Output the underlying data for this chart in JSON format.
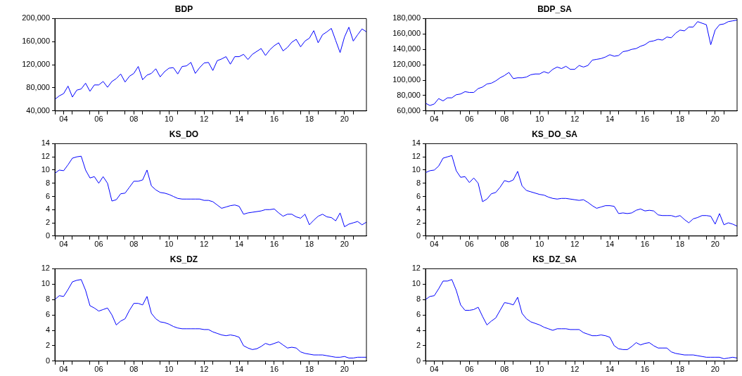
{
  "chart_data": [
    {
      "type": "line",
      "title": "BDP",
      "color": "#0000ff",
      "marker": "none",
      "x": [
        "2004-01",
        "2004-04",
        "2004-07",
        "2004-10",
        "2005-01",
        "2005-04",
        "2005-07",
        "2005-10",
        "2006-01",
        "2006-04",
        "2006-07",
        "2006-10",
        "2007-01",
        "2007-04",
        "2007-07",
        "2007-10",
        "2008-01",
        "2008-04",
        "2008-07",
        "2008-10",
        "2009-01",
        "2009-04",
        "2009-07",
        "2009-10",
        "2010-01",
        "2010-04",
        "2010-07",
        "2010-10",
        "2011-01",
        "2011-04",
        "2011-07",
        "2011-10",
        "2012-01",
        "2012-04",
        "2012-07",
        "2012-10",
        "2013-01",
        "2013-04",
        "2013-07",
        "2013-10",
        "2014-01",
        "2014-04",
        "2014-07",
        "2014-10",
        "2015-01",
        "2015-04",
        "2015-07",
        "2015-10",
        "2016-01",
        "2016-04",
        "2016-07",
        "2016-10",
        "2017-01",
        "2017-04",
        "2017-07",
        "2017-10",
        "2018-01",
        "2018-04",
        "2018-07",
        "2018-10",
        "2019-01",
        "2019-04",
        "2019-07",
        "2019-10",
        "2020-01",
        "2020-04",
        "2020-07",
        "2020-10",
        "2021-01",
        "2021-04",
        "2021-07",
        "2021-10"
      ],
      "values": [
        60000,
        66000,
        70000,
        83000,
        64000,
        76000,
        78000,
        88000,
        74000,
        85000,
        85000,
        91000,
        81000,
        91000,
        96000,
        104000,
        90000,
        100000,
        105000,
        117000,
        94000,
        102000,
        105000,
        113000,
        99000,
        108000,
        114000,
        115000,
        104000,
        117000,
        118000,
        124000,
        105000,
        115000,
        123000,
        124000,
        110000,
        127000,
        130000,
        134000,
        121000,
        134000,
        134000,
        138000,
        129000,
        138000,
        143000,
        148000,
        136000,
        146000,
        153000,
        158000,
        144000,
        150000,
        159000,
        164000,
        151000,
        161000,
        166000,
        179000,
        158000,
        172000,
        177000,
        183000,
        162000,
        141000,
        168000,
        185000,
        161000,
        172000,
        182000,
        177000
      ],
      "xlim": [
        "2004-01",
        "2021-10"
      ],
      "xticks": [
        {
          "value": "2004",
          "label": null
        },
        {
          "value": "2004-07",
          "label": "04"
        },
        {
          "value": "2005",
          "label": null
        },
        {
          "value": "2006",
          "label": null
        },
        {
          "value": "2006-07",
          "label": "06"
        },
        {
          "value": "2007",
          "label": null
        },
        {
          "value": "2008",
          "label": null
        },
        {
          "value": "2008-07",
          "label": "08"
        },
        {
          "value": "2009",
          "label": null
        },
        {
          "value": "2010",
          "label": null
        },
        {
          "value": "2010-07",
          "label": "10"
        },
        {
          "value": "2011",
          "label": null
        },
        {
          "value": "2012",
          "label": null
        },
        {
          "value": "2012-07",
          "label": "12"
        },
        {
          "value": "2013",
          "label": null
        },
        {
          "value": "2014",
          "label": null
        },
        {
          "value": "2014-07",
          "label": "14"
        },
        {
          "value": "2015",
          "label": null
        },
        {
          "value": "2016",
          "label": null
        },
        {
          "value": "2016-07",
          "label": "16"
        },
        {
          "value": "2017",
          "label": null
        },
        {
          "value": "2018",
          "label": null
        },
        {
          "value": "2018-07",
          "label": "18"
        },
        {
          "value": "2019",
          "label": null
        },
        {
          "value": "2020",
          "label": null
        },
        {
          "value": "2020-07",
          "label": "20"
        },
        {
          "value": "2021",
          "label": null
        }
      ],
      "ylim": [
        40000,
        200000
      ],
      "yticks": [
        {
          "value": 40000,
          "label": "40,000"
        },
        {
          "value": 80000,
          "label": "80,000"
        },
        {
          "value": 120000,
          "label": "120,000"
        },
        {
          "value": 160000,
          "label": "160,000"
        },
        {
          "value": 200000,
          "label": "200,000"
        }
      ]
    },
    {
      "type": "line",
      "title": "BDP_SA",
      "color": "#0000ff",
      "marker": "none",
      "x": [
        "2004-01",
        "2004-04",
        "2004-07",
        "2004-10",
        "2005-01",
        "2005-04",
        "2005-07",
        "2005-10",
        "2006-01",
        "2006-04",
        "2006-07",
        "2006-10",
        "2007-01",
        "2007-04",
        "2007-07",
        "2007-10",
        "2008-01",
        "2008-04",
        "2008-07",
        "2008-10",
        "2009-01",
        "2009-04",
        "2009-07",
        "2009-10",
        "2010-01",
        "2010-04",
        "2010-07",
        "2010-10",
        "2011-01",
        "2011-04",
        "2011-07",
        "2011-10",
        "2012-01",
        "2012-04",
        "2012-07",
        "2012-10",
        "2013-01",
        "2013-04",
        "2013-07",
        "2013-10",
        "2014-01",
        "2014-04",
        "2014-07",
        "2014-10",
        "2015-01",
        "2015-04",
        "2015-07",
        "2015-10",
        "2016-01",
        "2016-04",
        "2016-07",
        "2016-10",
        "2017-01",
        "2017-04",
        "2017-07",
        "2017-10",
        "2018-01",
        "2018-04",
        "2018-07",
        "2018-10",
        "2019-01",
        "2019-04",
        "2019-07",
        "2019-10",
        "2020-01",
        "2020-04",
        "2020-07",
        "2020-10",
        "2021-01",
        "2021-04",
        "2021-07",
        "2021-10"
      ],
      "values": [
        70000,
        67000,
        69000,
        76000,
        73000,
        77000,
        77000,
        81000,
        82000,
        85000,
        84000,
        84000,
        89000,
        91000,
        95000,
        96000,
        99000,
        103000,
        106000,
        110000,
        102000,
        103000,
        103000,
        104000,
        107000,
        108000,
        108000,
        111000,
        109000,
        114000,
        117000,
        115000,
        118000,
        114000,
        114000,
        119000,
        117000,
        119000,
        126000,
        127000,
        128000,
        130000,
        133000,
        131000,
        132000,
        137000,
        138000,
        140000,
        141000,
        144000,
        146000,
        150000,
        151000,
        153000,
        152000,
        156000,
        155000,
        161000,
        165000,
        164000,
        169000,
        169000,
        176000,
        174000,
        172000,
        146000,
        165000,
        172000,
        173000,
        176000,
        177000,
        178000
      ],
      "xlim": [
        "2004-01",
        "2021-10"
      ],
      "xticks": [
        {
          "value": "2004",
          "label": null
        },
        {
          "value": "2004-07",
          "label": "04"
        },
        {
          "value": "2005",
          "label": null
        },
        {
          "value": "2006",
          "label": null
        },
        {
          "value": "2006-07",
          "label": "06"
        },
        {
          "value": "2007",
          "label": null
        },
        {
          "value": "2008",
          "label": null
        },
        {
          "value": "2008-07",
          "label": "08"
        },
        {
          "value": "2009",
          "label": null
        },
        {
          "value": "2010",
          "label": null
        },
        {
          "value": "2010-07",
          "label": "10"
        },
        {
          "value": "2011",
          "label": null
        },
        {
          "value": "2012",
          "label": null
        },
        {
          "value": "2012-07",
          "label": "12"
        },
        {
          "value": "2013",
          "label": null
        },
        {
          "value": "2014",
          "label": null
        },
        {
          "value": "2014-07",
          "label": "14"
        },
        {
          "value": "2015",
          "label": null
        },
        {
          "value": "2016",
          "label": null
        },
        {
          "value": "2016-07",
          "label": "16"
        },
        {
          "value": "2017",
          "label": null
        },
        {
          "value": "2018",
          "label": null
        },
        {
          "value": "2018-07",
          "label": "18"
        },
        {
          "value": "2019",
          "label": null
        },
        {
          "value": "2020",
          "label": null
        },
        {
          "value": "2020-07",
          "label": "20"
        },
        {
          "value": "2021",
          "label": null
        }
      ],
      "ylim": [
        60000,
        180000
      ],
      "yticks": [
        {
          "value": 60000,
          "label": "60,000"
        },
        {
          "value": 80000,
          "label": "80,000"
        },
        {
          "value": 100000,
          "label": "100,000"
        },
        {
          "value": 120000,
          "label": "120,000"
        },
        {
          "value": 140000,
          "label": "140,000"
        },
        {
          "value": 160000,
          "label": "160,000"
        },
        {
          "value": 180000,
          "label": "180,000"
        }
      ]
    },
    {
      "type": "line",
      "title": "KS_DO",
      "color": "#0000ff",
      "marker": "none",
      "x": [
        "2004-01",
        "2004-04",
        "2004-07",
        "2004-10",
        "2005-01",
        "2005-04",
        "2005-07",
        "2005-10",
        "2006-01",
        "2006-04",
        "2006-07",
        "2006-10",
        "2007-01",
        "2007-04",
        "2007-07",
        "2007-10",
        "2008-01",
        "2008-04",
        "2008-07",
        "2008-10",
        "2009-01",
        "2009-04",
        "2009-07",
        "2009-10",
        "2010-01",
        "2010-04",
        "2010-07",
        "2010-10",
        "2011-01",
        "2011-04",
        "2011-07",
        "2011-10",
        "2012-01",
        "2012-04",
        "2012-07",
        "2012-10",
        "2013-01",
        "2013-04",
        "2013-07",
        "2013-10",
        "2014-01",
        "2014-04",
        "2014-07",
        "2014-10",
        "2015-01",
        "2015-04",
        "2015-07",
        "2015-10",
        "2016-01",
        "2016-04",
        "2016-07",
        "2016-10",
        "2017-01",
        "2017-04",
        "2017-07",
        "2017-10",
        "2018-01",
        "2018-04",
        "2018-07",
        "2018-10",
        "2019-01",
        "2019-04",
        "2019-07",
        "2019-10",
        "2020-01",
        "2020-04",
        "2020-07",
        "2020-10",
        "2021-01",
        "2021-04",
        "2021-07",
        "2021-10"
      ],
      "values": [
        9.5,
        10.0,
        9.9,
        10.8,
        11.8,
        12.0,
        12.1,
        10.0,
        8.8,
        9.0,
        8.0,
        9.0,
        8.0,
        5.3,
        5.5,
        6.4,
        6.5,
        7.4,
        8.3,
        8.3,
        8.5,
        10.0,
        7.6,
        7.0,
        6.6,
        6.5,
        6.3,
        6.0,
        5.7,
        5.6,
        5.6,
        5.6,
        5.6,
        5.6,
        5.4,
        5.4,
        5.2,
        4.7,
        4.2,
        4.4,
        4.6,
        4.7,
        4.5,
        3.3,
        3.5,
        3.6,
        3.7,
        3.8,
        4.0,
        4.0,
        4.1,
        3.5,
        3.0,
        3.3,
        3.3,
        2.9,
        2.7,
        3.3,
        1.7,
        2.4,
        3.0,
        3.3,
        2.9,
        2.8,
        2.3,
        3.5,
        1.4,
        1.8,
        2.0,
        2.2,
        1.7,
        2.1
      ],
      "xlim": [
        "2004-01",
        "2021-10"
      ],
      "xticks": [
        {
          "value": "2004",
          "label": null
        },
        {
          "value": "2004-07",
          "label": "04"
        },
        {
          "value": "2005",
          "label": null
        },
        {
          "value": "2006",
          "label": null
        },
        {
          "value": "2006-07",
          "label": "06"
        },
        {
          "value": "2007",
          "label": null
        },
        {
          "value": "2008",
          "label": null
        },
        {
          "value": "2008-07",
          "label": "08"
        },
        {
          "value": "2009",
          "label": null
        },
        {
          "value": "2010",
          "label": null
        },
        {
          "value": "2010-07",
          "label": "10"
        },
        {
          "value": "2011",
          "label": null
        },
        {
          "value": "2012",
          "label": null
        },
        {
          "value": "2012-07",
          "label": "12"
        },
        {
          "value": "2013",
          "label": null
        },
        {
          "value": "2014",
          "label": null
        },
        {
          "value": "2014-07",
          "label": "14"
        },
        {
          "value": "2015",
          "label": null
        },
        {
          "value": "2016",
          "label": null
        },
        {
          "value": "2016-07",
          "label": "16"
        },
        {
          "value": "2017",
          "label": null
        },
        {
          "value": "2018",
          "label": null
        },
        {
          "value": "2018-07",
          "label": "18"
        },
        {
          "value": "2019",
          "label": null
        },
        {
          "value": "2020",
          "label": null
        },
        {
          "value": "2020-07",
          "label": "20"
        },
        {
          "value": "2021",
          "label": null
        }
      ],
      "ylim": [
        0,
        14
      ],
      "yticks": [
        0,
        2,
        4,
        6,
        8,
        10,
        12,
        14
      ]
    },
    {
      "type": "line",
      "title": "KS_DO_SA",
      "color": "#0000ff",
      "marker": "none",
      "x": [
        "2004-01",
        "2004-04",
        "2004-07",
        "2004-10",
        "2005-01",
        "2005-04",
        "2005-07",
        "2005-10",
        "2006-01",
        "2006-04",
        "2006-07",
        "2006-10",
        "2007-01",
        "2007-04",
        "2007-07",
        "2007-10",
        "2008-01",
        "2008-04",
        "2008-07",
        "2008-10",
        "2009-01",
        "2009-04",
        "2009-07",
        "2009-10",
        "2010-01",
        "2010-04",
        "2010-07",
        "2010-10",
        "2011-01",
        "2011-04",
        "2011-07",
        "2011-10",
        "2012-01",
        "2012-04",
        "2012-07",
        "2012-10",
        "2013-01",
        "2013-04",
        "2013-07",
        "2013-10",
        "2014-01",
        "2014-04",
        "2014-07",
        "2014-10",
        "2015-01",
        "2015-04",
        "2015-07",
        "2015-10",
        "2016-01",
        "2016-04",
        "2016-07",
        "2016-10",
        "2017-01",
        "2017-04",
        "2017-07",
        "2017-10",
        "2018-01",
        "2018-04",
        "2018-07",
        "2018-10",
        "2019-01",
        "2019-04",
        "2019-07",
        "2019-10",
        "2020-01",
        "2020-04",
        "2020-07",
        "2020-10",
        "2021-01",
        "2021-04",
        "2021-07",
        "2021-10"
      ],
      "values": [
        9.6,
        9.9,
        10.0,
        10.6,
        11.8,
        12.0,
        12.2,
        9.9,
        8.9,
        9.0,
        8.1,
        8.8,
        8.0,
        5.2,
        5.6,
        6.4,
        6.6,
        7.4,
        8.4,
        8.2,
        8.5,
        9.8,
        7.6,
        6.9,
        6.7,
        6.5,
        6.3,
        6.2,
        5.9,
        5.7,
        5.6,
        5.7,
        5.7,
        5.6,
        5.5,
        5.4,
        5.5,
        5.1,
        4.6,
        4.2,
        4.4,
        4.6,
        4.6,
        4.5,
        3.4,
        3.5,
        3.4,
        3.5,
        3.9,
        4.1,
        3.8,
        3.9,
        3.8,
        3.2,
        3.1,
        3.1,
        3.1,
        2.9,
        3.1,
        2.5,
        2.0,
        2.6,
        2.8,
        3.1,
        3.1,
        3.0,
        1.8,
        3.4,
        1.7,
        2.0,
        1.8,
        1.5
      ],
      "xlim": [
        "2004-01",
        "2021-10"
      ],
      "xticks": [
        {
          "value": "2004",
          "label": null
        },
        {
          "value": "2004-07",
          "label": "04"
        },
        {
          "value": "2005",
          "label": null
        },
        {
          "value": "2006",
          "label": null
        },
        {
          "value": "2006-07",
          "label": "06"
        },
        {
          "value": "2007",
          "label": null
        },
        {
          "value": "2008",
          "label": null
        },
        {
          "value": "2008-07",
          "label": "08"
        },
        {
          "value": "2009",
          "label": null
        },
        {
          "value": "2010",
          "label": null
        },
        {
          "value": "2010-07",
          "label": "10"
        },
        {
          "value": "2011",
          "label": null
        },
        {
          "value": "2012",
          "label": null
        },
        {
          "value": "2012-07",
          "label": "12"
        },
        {
          "value": "2013",
          "label": null
        },
        {
          "value": "2014",
          "label": null
        },
        {
          "value": "2014-07",
          "label": "14"
        },
        {
          "value": "2015",
          "label": null
        },
        {
          "value": "2016",
          "label": null
        },
        {
          "value": "2016-07",
          "label": "16"
        },
        {
          "value": "2017",
          "label": null
        },
        {
          "value": "2018",
          "label": null
        },
        {
          "value": "2018-07",
          "label": "18"
        },
        {
          "value": "2019",
          "label": null
        },
        {
          "value": "2020",
          "label": null
        },
        {
          "value": "2020-07",
          "label": "20"
        },
        {
          "value": "2021",
          "label": null
        }
      ],
      "ylim": [
        0,
        14
      ],
      "yticks": [
        0,
        2,
        4,
        6,
        8,
        10,
        12,
        14
      ]
    },
    {
      "type": "line",
      "title": "KS_DZ",
      "color": "#0000ff",
      "marker": "none",
      "x": [
        "2004-01",
        "2004-04",
        "2004-07",
        "2004-10",
        "2005-01",
        "2005-04",
        "2005-07",
        "2005-10",
        "2006-01",
        "2006-04",
        "2006-07",
        "2006-10",
        "2007-01",
        "2007-04",
        "2007-07",
        "2007-10",
        "2008-01",
        "2008-04",
        "2008-07",
        "2008-10",
        "2009-01",
        "2009-04",
        "2009-07",
        "2009-10",
        "2010-01",
        "2010-04",
        "2010-07",
        "2010-10",
        "2011-01",
        "2011-04",
        "2011-07",
        "2011-10",
        "2012-01",
        "2012-04",
        "2012-07",
        "2012-10",
        "2013-01",
        "2013-04",
        "2013-07",
        "2013-10",
        "2014-01",
        "2014-04",
        "2014-07",
        "2014-10",
        "2015-01",
        "2015-04",
        "2015-07",
        "2015-10",
        "2016-01",
        "2016-04",
        "2016-07",
        "2016-10",
        "2017-01",
        "2017-04",
        "2017-07",
        "2017-10",
        "2018-01",
        "2018-04",
        "2018-07",
        "2018-10",
        "2019-01",
        "2019-04",
        "2019-07",
        "2019-10",
        "2020-01",
        "2020-04",
        "2020-07",
        "2020-10",
        "2021-01",
        "2021-04",
        "2021-07",
        "2021-10"
      ],
      "values": [
        8.0,
        8.5,
        8.4,
        9.3,
        10.3,
        10.5,
        10.6,
        9.2,
        7.2,
        6.9,
        6.5,
        6.7,
        6.9,
        6.0,
        4.7,
        5.2,
        5.5,
        6.6,
        7.5,
        7.5,
        7.3,
        8.4,
        6.2,
        5.5,
        5.1,
        5.0,
        4.8,
        4.5,
        4.3,
        4.2,
        4.2,
        4.2,
        4.2,
        4.2,
        4.1,
        4.1,
        3.8,
        3.6,
        3.4,
        3.3,
        3.4,
        3.3,
        3.1,
        2.0,
        1.7,
        1.5,
        1.6,
        1.9,
        2.3,
        2.1,
        2.3,
        2.5,
        2.1,
        1.7,
        1.8,
        1.7,
        1.2,
        1.0,
        0.9,
        0.8,
        0.8,
        0.8,
        0.7,
        0.6,
        0.5,
        0.5,
        0.6,
        0.4,
        0.4,
        0.5,
        0.5,
        0.5
      ],
      "xlim": [
        "2004-01",
        "2021-10"
      ],
      "xticks": [
        {
          "value": "2004",
          "label": null
        },
        {
          "value": "2004-07",
          "label": "04"
        },
        {
          "value": "2005",
          "label": null
        },
        {
          "value": "2006",
          "label": null
        },
        {
          "value": "2006-07",
          "label": "06"
        },
        {
          "value": "2007",
          "label": null
        },
        {
          "value": "2008",
          "label": null
        },
        {
          "value": "2008-07",
          "label": "08"
        },
        {
          "value": "2009",
          "label": null
        },
        {
          "value": "2010",
          "label": null
        },
        {
          "value": "2010-07",
          "label": "10"
        },
        {
          "value": "2011",
          "label": null
        },
        {
          "value": "2012",
          "label": null
        },
        {
          "value": "2012-07",
          "label": "12"
        },
        {
          "value": "2013",
          "label": null
        },
        {
          "value": "2014",
          "label": null
        },
        {
          "value": "2014-07",
          "label": "14"
        },
        {
          "value": "2015",
          "label": null
        },
        {
          "value": "2016",
          "label": null
        },
        {
          "value": "2016-07",
          "label": "16"
        },
        {
          "value": "2017",
          "label": null
        },
        {
          "value": "2018",
          "label": null
        },
        {
          "value": "2018-07",
          "label": "18"
        },
        {
          "value": "2019",
          "label": null
        },
        {
          "value": "2020",
          "label": null
        },
        {
          "value": "2020-07",
          "label": "20"
        },
        {
          "value": "2021",
          "label": null
        }
      ],
      "ylim": [
        0,
        12
      ],
      "yticks": [
        0,
        2,
        4,
        6,
        8,
        10,
        12
      ]
    },
    {
      "type": "line",
      "title": "KS_DZ_SA",
      "color": "#0000ff",
      "marker": "none",
      "x": [
        "2004-01",
        "2004-04",
        "2004-07",
        "2004-10",
        "2005-01",
        "2005-04",
        "2005-07",
        "2005-10",
        "2006-01",
        "2006-04",
        "2006-07",
        "2006-10",
        "2007-01",
        "2007-04",
        "2007-07",
        "2007-10",
        "2008-01",
        "2008-04",
        "2008-07",
        "2008-10",
        "2009-01",
        "2009-04",
        "2009-07",
        "2009-10",
        "2010-01",
        "2010-04",
        "2010-07",
        "2010-10",
        "2011-01",
        "2011-04",
        "2011-07",
        "2011-10",
        "2012-01",
        "2012-04",
        "2012-07",
        "2012-10",
        "2013-01",
        "2013-04",
        "2013-07",
        "2013-10",
        "2014-01",
        "2014-04",
        "2014-07",
        "2014-10",
        "2015-01",
        "2015-04",
        "2015-07",
        "2015-10",
        "2016-01",
        "2016-04",
        "2016-07",
        "2016-10",
        "2017-01",
        "2017-04",
        "2017-07",
        "2017-10",
        "2018-01",
        "2018-04",
        "2018-07",
        "2018-10",
        "2019-01",
        "2019-04",
        "2019-07",
        "2019-10",
        "2020-01",
        "2020-04",
        "2020-07",
        "2020-10",
        "2021-01",
        "2021-04",
        "2021-07",
        "2021-10"
      ],
      "values": [
        8.0,
        8.4,
        8.5,
        9.4,
        10.4,
        10.4,
        10.6,
        9.2,
        7.3,
        6.6,
        6.6,
        6.7,
        7.0,
        5.8,
        4.7,
        5.2,
        5.6,
        6.6,
        7.6,
        7.5,
        7.3,
        8.3,
        6.2,
        5.5,
        5.1,
        4.9,
        4.7,
        4.4,
        4.2,
        4.0,
        4.2,
        4.2,
        4.2,
        4.1,
        4.1,
        4.1,
        3.7,
        3.5,
        3.3,
        3.3,
        3.4,
        3.3,
        3.1,
        2.0,
        1.6,
        1.5,
        1.5,
        1.9,
        2.4,
        2.1,
        2.3,
        2.4,
        2.0,
        1.7,
        1.7,
        1.7,
        1.2,
        1.0,
        0.9,
        0.8,
        0.8,
        0.8,
        0.7,
        0.6,
        0.5,
        0.5,
        0.5,
        0.5,
        0.3,
        0.4,
        0.5,
        0.4
      ],
      "xlim": [
        "2004-01",
        "2021-10"
      ],
      "xticks": [
        {
          "value": "2004",
          "label": null
        },
        {
          "value": "2004-07",
          "label": "04"
        },
        {
          "value": "2005",
          "label": null
        },
        {
          "value": "2006",
          "label": null
        },
        {
          "value": "2006-07",
          "label": "06"
        },
        {
          "value": "2007",
          "label": null
        },
        {
          "value": "2008",
          "label": null
        },
        {
          "value": "2008-07",
          "label": "08"
        },
        {
          "value": "2009",
          "label": null
        },
        {
          "value": "2010",
          "label": null
        },
        {
          "value": "2010-07",
          "label": "10"
        },
        {
          "value": "2011",
          "label": null
        },
        {
          "value": "2012",
          "label": null
        },
        {
          "value": "2012-07",
          "label": "12"
        },
        {
          "value": "2013",
          "label": null
        },
        {
          "value": "2014",
          "label": null
        },
        {
          "value": "2014-07",
          "label": "14"
        },
        {
          "value": "2015",
          "label": null
        },
        {
          "value": "2016",
          "label": null
        },
        {
          "value": "2016-07",
          "label": "16"
        },
        {
          "value": "2017",
          "label": null
        },
        {
          "value": "2018",
          "label": null
        },
        {
          "value": "2018-07",
          "label": "18"
        },
        {
          "value": "2019",
          "label": null
        },
        {
          "value": "2020",
          "label": null
        },
        {
          "value": "2020-07",
          "label": "20"
        },
        {
          "value": "2021",
          "label": null
        }
      ],
      "ylim": [
        0,
        12
      ],
      "yticks": [
        0,
        2,
        4,
        6,
        8,
        10,
        12
      ]
    }
  ]
}
